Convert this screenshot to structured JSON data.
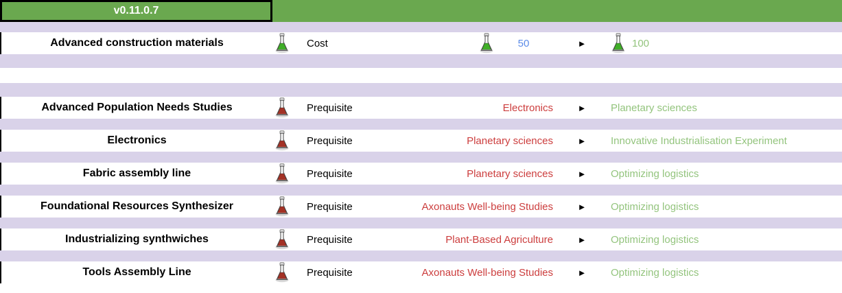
{
  "header": {
    "version": "v0.11.0.7"
  },
  "icons": {
    "arrow": "►",
    "arrow_name": "right-arrow-icon",
    "flask_green_name": "green-flask-icon",
    "flask_red_name": "red-flask-icon"
  },
  "colors": {
    "header_green": "#6aa84f",
    "row_lavender": "#d9d2e9",
    "old_value_red": "#cc3d3d",
    "new_value_green": "#93c47d",
    "cost_blue": "#5b8be8",
    "flask_liquid_green": "#3fae27",
    "flask_liquid_red": "#a33125",
    "version_text": "#ffffff",
    "name_text": "#000000"
  },
  "rows": [
    {
      "name": "Advanced construction materials",
      "flask": "green",
      "label": "Cost",
      "old": "50",
      "new": "100",
      "old_style": "blue",
      "new_style": "green",
      "value_flasks": true
    },
    {
      "name": "Advanced Population Needs Studies",
      "flask": "red",
      "label": "Prequisite",
      "old": "Electronics",
      "new": "Planetary sciences",
      "old_style": "red",
      "new_style": "green",
      "value_flasks": false
    },
    {
      "name": "Electronics",
      "flask": "red",
      "label": "Prequisite",
      "old": "Planetary sciences",
      "new": "Innovative Industrialisation Experiment",
      "old_style": "red",
      "new_style": "green",
      "value_flasks": false
    },
    {
      "name": "Fabric assembly line",
      "flask": "red",
      "label": "Prequisite",
      "old": "Planetary sciences",
      "new": "Optimizing logistics",
      "old_style": "red",
      "new_style": "green",
      "value_flasks": false
    },
    {
      "name": "Foundational Resources Synthesizer",
      "flask": "red",
      "label": "Prequisite",
      "old": "Axonauts Well-being Studies",
      "new": "Optimizing logistics",
      "old_style": "red",
      "new_style": "green",
      "value_flasks": false
    },
    {
      "name": "Industrializing synthwiches",
      "flask": "red",
      "label": "Prequisite",
      "old": "Plant-Based Agriculture",
      "new": "Optimizing logistics",
      "old_style": "red",
      "new_style": "green",
      "value_flasks": false
    },
    {
      "name": "Tools Assembly Line",
      "flask": "red",
      "label": "Prequisite",
      "old": "Axonauts Well-being Studies",
      "new": "Optimizing logistics",
      "old_style": "red",
      "new_style": "green",
      "value_flasks": false
    }
  ]
}
